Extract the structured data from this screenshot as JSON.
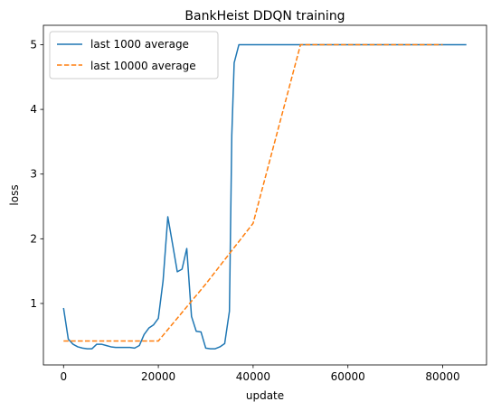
{
  "chart_data": {
    "type": "line",
    "title": "BankHeist DDQN training",
    "xlabel": "update",
    "ylabel": "loss",
    "xlim": [
      -4250,
      89250
    ],
    "ylim": [
      0.05,
      5.3
    ],
    "grid": false,
    "legend_position": "top-left",
    "x_ticks": [
      0,
      20000,
      40000,
      60000,
      80000
    ],
    "y_ticks": [
      1,
      2,
      3,
      4,
      5
    ],
    "series": [
      {
        "name": "last 1000 average",
        "color": "#1f77b4",
        "style": "solid",
        "x": [
          0,
          1000,
          2000,
          3000,
          4000,
          5000,
          6000,
          7000,
          8000,
          9000,
          10000,
          11000,
          12000,
          13000,
          14000,
          15000,
          16000,
          17000,
          18000,
          19000,
          20000,
          21000,
          22000,
          23000,
          24000,
          25000,
          26000,
          27000,
          28000,
          29000,
          30000,
          31000,
          32000,
          33000,
          34000,
          35000,
          35500,
          36000,
          37000,
          38000,
          40000,
          50000,
          60000,
          70000,
          80000,
          85000
        ],
        "y": [
          0.93,
          0.45,
          0.37,
          0.33,
          0.31,
          0.3,
          0.3,
          0.37,
          0.37,
          0.35,
          0.33,
          0.32,
          0.32,
          0.32,
          0.32,
          0.31,
          0.35,
          0.52,
          0.62,
          0.67,
          0.77,
          1.35,
          2.34,
          1.92,
          1.49,
          1.53,
          1.85,
          0.8,
          0.57,
          0.56,
          0.31,
          0.3,
          0.3,
          0.33,
          0.38,
          0.88,
          3.6,
          4.72,
          5.0,
          5.0,
          5.0,
          5.0,
          5.0,
          5.0,
          5.0,
          5.0
        ]
      },
      {
        "name": "last 10000 average",
        "color": "#ff7f0e",
        "style": "dashed",
        "x": [
          0,
          10000,
          20000,
          30000,
          40000,
          50000,
          60000,
          70000,
          80000
        ],
        "y": [
          0.42,
          0.42,
          0.42,
          1.3,
          2.24,
          5.0,
          5.0,
          5.0,
          5.0
        ]
      }
    ]
  }
}
